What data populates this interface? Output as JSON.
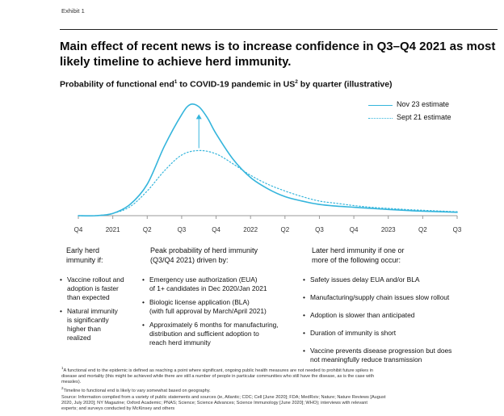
{
  "exhibit_label": "Exhibit 1",
  "headline": "Main effect of recent news is to increase confidence in Q3–Q4 2021 as most likely timeline to achieve herd immunity.",
  "subtitle": {
    "part1": "Probability of functional end",
    "sup1": "1",
    "part2": " to COVID-19 pandemic in US",
    "sup2": "2",
    "part3": " by quarter (illustrative)"
  },
  "chart_data": {
    "type": "line",
    "title": "Probability of functional end to COVID-19 pandemic in US by quarter (illustrative)",
    "x_tick_labels": [
      "Q4",
      "2021",
      "Q2",
      "Q3",
      "Q4",
      "2022",
      "Q2",
      "Q3",
      "Q4",
      "2023",
      "Q2",
      "Q3"
    ],
    "y_axis_shown": false,
    "ylim": [
      0,
      1
    ],
    "grid": false,
    "legend_position": "top-right",
    "legend": [
      "Nov 23 estimate",
      "Sept 21 estimate"
    ],
    "series": [
      {
        "name": "Nov 23 estimate",
        "style": "solid",
        "color": "#35b5dc",
        "x": [
          0,
          0.5,
          1,
          1.5,
          2,
          2.5,
          3,
          3.25,
          3.5,
          3.75,
          4,
          4.5,
          5,
          5.5,
          6,
          6.5,
          7,
          7.5,
          8,
          8.5,
          9,
          9.5,
          10,
          11
        ],
        "y": [
          0.0,
          0.0,
          0.02,
          0.1,
          0.28,
          0.62,
          0.9,
          0.99,
          0.97,
          0.87,
          0.73,
          0.5,
          0.34,
          0.24,
          0.17,
          0.13,
          0.1,
          0.085,
          0.075,
          0.065,
          0.055,
          0.047,
          0.04,
          0.03
        ]
      },
      {
        "name": "Sept 21 estimate",
        "style": "dotted",
        "color": "#35b5dc",
        "x": [
          0,
          0.5,
          1,
          1.5,
          2,
          2.5,
          3,
          3.5,
          4,
          4.5,
          5,
          5.5,
          6,
          6.5,
          7,
          7.5,
          8,
          8.5,
          9,
          9.5,
          10,
          11
        ],
        "y": [
          0.0,
          0.0,
          0.02,
          0.08,
          0.22,
          0.4,
          0.54,
          0.58,
          0.55,
          0.46,
          0.36,
          0.28,
          0.22,
          0.17,
          0.13,
          0.11,
          0.09,
          0.075,
          0.065,
          0.055,
          0.048,
          0.035
        ]
      }
    ],
    "annotation": "arrow from Sept 21 estimate peak up to Nov 23 estimate peak"
  },
  "columns": [
    {
      "heading": [
        "Early herd",
        "immunity if:"
      ],
      "bullets": [
        [
          "Vaccine rollout and",
          "adoption is faster",
          "than expected"
        ],
        [
          "Natural immunity",
          "is significantly",
          "higher than",
          "realized"
        ]
      ]
    },
    {
      "heading": [
        "Peak probability of herd immunity",
        "(Q3/Q4 2021) driven by:"
      ],
      "bullets": [
        [
          "Emergency use authorization (EUA)",
          "of 1+ candidates in Dec 2020/Jan 2021"
        ],
        [
          "Biologic license application (BLA)",
          "(with full approval by March/April 2021)"
        ],
        [
          "Approximately 6 months for manufacturing,",
          "distribution and sufficient adoption to",
          "reach herd immunity"
        ]
      ]
    },
    {
      "heading": [
        "Later herd immunity if one or",
        "more of the following occur:"
      ],
      "bullets": [
        [
          "Safety issues delay EUA and/or BLA"
        ],
        [
          "Manufacturing/supply chain issues slow rollout"
        ],
        [
          "Adoption is slower than anticipated"
        ],
        [
          "Duration of immunity is short"
        ],
        [
          "Vaccine prevents disease progression but does",
          "not meaningfully reduce transmission"
        ]
      ]
    }
  ],
  "footnotes": {
    "f1_lines": [
      "A functional end to the epidemic is defined as reaching a point where significant, ongoing public health measures are not needed to prohibit future spikes in",
      "disease and mortality (this might be achieved while there are still a number of people in particular communities who still have the disease, as is the case with",
      "measles)."
    ],
    "f2": "Timeline to functional end is likely to vary somewhat based on geography.",
    "source_lines": [
      "Source: Information compiled from a variety of public statements and sources (ie, Atlantic; CDC; Cell [June 2020]; FDA; MedRxiv; Nature; Nature Reviews [August",
      "2020, July 2020]; NY Magazine; Oxford Academic; PNAS; Science; Science Advances; Science Immunology [June 2020]; WHO); interviews with relevant",
      "experts; and surveys conducted by McKinsey and others"
    ]
  }
}
